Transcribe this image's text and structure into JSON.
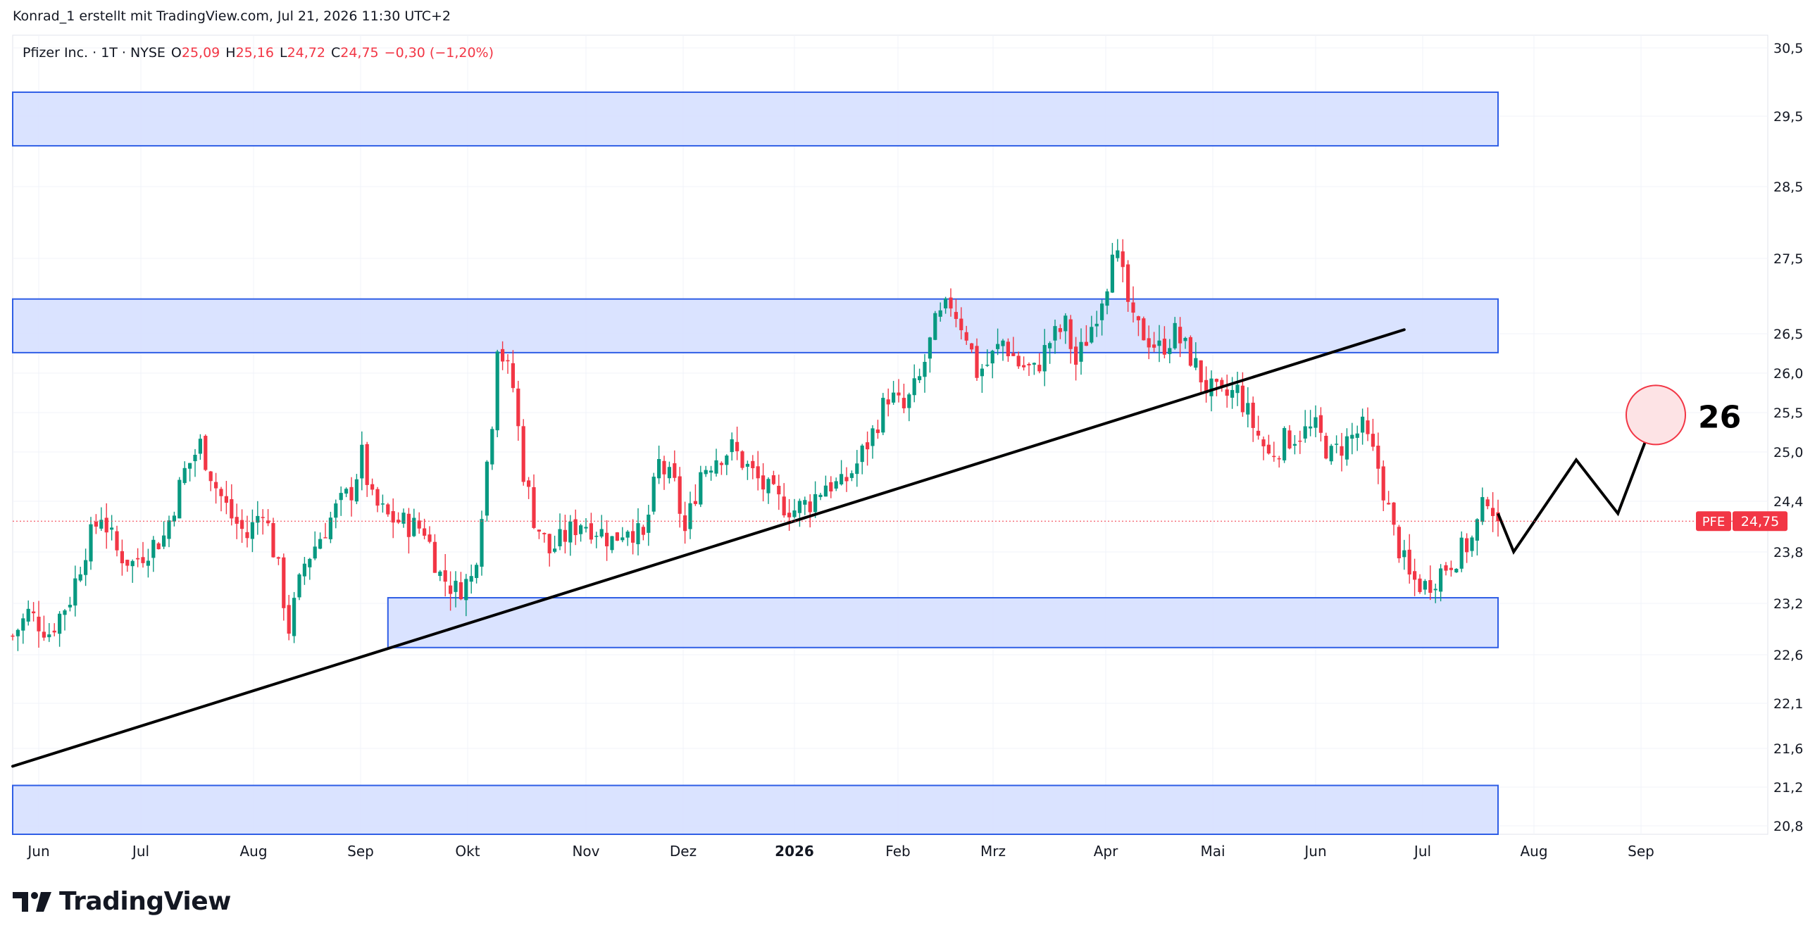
{
  "header": {
    "credit": "Konrad_1 erstellt mit TradingView.com, Jul 21, 2026 11:30 UTC+2"
  },
  "legend": {
    "symbol_text": "Pfizer Inc. · 1T · NYSE",
    "o_label": "O",
    "o_value": "25,09",
    "h_label": "H",
    "h_value": "25,16",
    "l_label": "L",
    "l_value": "24,72",
    "c_label": "C",
    "c_value": "24,75",
    "change": "−0,30 (−1,20%)"
  },
  "footer": {
    "brand": "TradingView"
  },
  "colors": {
    "up": "#089981",
    "down": "#f23645",
    "zone_fill": "#d6e0ff",
    "zone_stroke": "#2f5ee6",
    "grid": "#f0f3fa",
    "text": "#131722",
    "price_badge": "#f23645"
  },
  "chart_data": {
    "type": "candlestick",
    "symbol": "PFE",
    "last_price": 24.75,
    "last_price_label": "24,75",
    "y_ticks": [
      "30,50",
      "29,50",
      "28,50",
      "27,50",
      "26,50",
      "26,00",
      "25,50",
      "25,00",
      "24,40",
      "23,80",
      "23,20",
      "22,60",
      "22,10",
      "21,60",
      "21,20",
      "20,80"
    ],
    "x_ticks": [
      {
        "label": "Jun",
        "bold": false
      },
      {
        "label": "Jul",
        "bold": false
      },
      {
        "label": "Aug",
        "bold": false
      },
      {
        "label": "Sep",
        "bold": false
      },
      {
        "label": "Okt",
        "bold": false
      },
      {
        "label": "Nov",
        "bold": false
      },
      {
        "label": "Dez",
        "bold": false
      },
      {
        "label": "2026",
        "bold": true
      },
      {
        "label": "Feb",
        "bold": false
      },
      {
        "label": "Mrz",
        "bold": false
      },
      {
        "label": "Apr",
        "bold": false
      },
      {
        "label": "Mai",
        "bold": false
      },
      {
        "label": "Jun",
        "bold": false
      },
      {
        "label": "Jul",
        "bold": false
      },
      {
        "label": "Aug",
        "bold": false
      },
      {
        "label": "Sep",
        "bold": false
      }
    ],
    "close_path": [
      [
        0,
        23.25
      ],
      [
        3,
        23.55
      ],
      [
        7,
        23.3
      ],
      [
        11,
        23.75
      ],
      [
        14,
        24.4
      ],
      [
        17,
        24.85
      ],
      [
        20,
        24.35
      ],
      [
        23,
        24.2
      ],
      [
        26,
        24.4
      ],
      [
        29,
        24.55
      ],
      [
        33,
        25.4
      ],
      [
        36,
        25.75
      ],
      [
        39,
        25.2
      ],
      [
        42,
        24.8
      ],
      [
        45,
        24.55
      ],
      [
        48,
        24.95
      ],
      [
        51,
        24.1
      ],
      [
        53,
        23.35
      ],
      [
        56,
        24.2
      ],
      [
        59,
        24.55
      ],
      [
        62,
        24.9
      ],
      [
        65,
        25.15
      ],
      [
        67,
        25.6
      ],
      [
        69,
        25.0
      ],
      [
        72,
        24.8
      ],
      [
        76,
        24.7
      ],
      [
        79,
        24.65
      ],
      [
        82,
        24.05
      ],
      [
        85,
        23.85
      ],
      [
        88,
        24.0
      ],
      [
        89,
        24.35
      ],
      [
        92,
        26.1
      ],
      [
        93,
        27.1
      ],
      [
        96,
        26.5
      ],
      [
        98,
        25.4
      ],
      [
        100,
        24.8
      ],
      [
        103,
        24.35
      ],
      [
        106,
        24.55
      ],
      [
        109,
        24.75
      ],
      [
        112,
        24.65
      ],
      [
        115,
        24.5
      ],
      [
        118,
        24.7
      ],
      [
        121,
        24.5
      ],
      [
        124,
        25.5
      ],
      [
        127,
        25.2
      ],
      [
        129,
        24.6
      ],
      [
        132,
        25.4
      ],
      [
        135,
        25.6
      ],
      [
        138,
        25.7
      ],
      [
        141,
        25.45
      ],
      [
        144,
        25.2
      ],
      [
        147,
        25.0
      ],
      [
        150,
        24.9
      ],
      [
        153,
        25.0
      ],
      [
        156,
        25.25
      ],
      [
        159,
        25.2
      ],
      [
        162,
        25.5
      ],
      [
        165,
        25.9
      ],
      [
        168,
        26.4
      ],
      [
        171,
        26.2
      ],
      [
        174,
        26.6
      ],
      [
        177,
        27.3
      ],
      [
        180,
        27.6
      ],
      [
        183,
        27.2
      ],
      [
        185,
        26.7
      ],
      [
        187,
        26.8
      ],
      [
        190,
        27.1
      ],
      [
        193,
        26.8
      ],
      [
        196,
        26.7
      ],
      [
        199,
        27.1
      ],
      [
        202,
        27.3
      ],
      [
        204,
        26.8
      ],
      [
        207,
        27.3
      ],
      [
        210,
        27.9
      ],
      [
        211,
        28.4
      ],
      [
        213,
        27.9
      ],
      [
        215,
        27.3
      ],
      [
        217,
        27.2
      ],
      [
        220,
        27.0
      ],
      [
        223,
        27.2
      ],
      [
        226,
        26.9
      ],
      [
        229,
        26.5
      ],
      [
        232,
        26.35
      ],
      [
        235,
        26.45
      ],
      [
        238,
        26.0
      ],
      [
        241,
        25.6
      ],
      [
        244,
        25.8
      ],
      [
        247,
        25.9
      ],
      [
        250,
        25.95
      ],
      [
        253,
        25.6
      ],
      [
        256,
        25.8
      ],
      [
        259,
        25.95
      ],
      [
        262,
        25.45
      ],
      [
        265,
        24.6
      ],
      [
        268,
        24.0
      ],
      [
        271,
        23.9
      ],
      [
        274,
        24.1
      ],
      [
        277,
        24.3
      ],
      [
        280,
        24.5
      ],
      [
        283,
        25.1
      ],
      [
        285,
        24.75
      ]
    ],
    "zones": [
      {
        "day_start": 0,
        "day_end": 285,
        "price_top": 30.35,
        "price_bottom": 29.65
      },
      {
        "day_start": 0,
        "day_end": 285,
        "price_top": 27.65,
        "price_bottom": 26.95
      },
      {
        "day_start": 72,
        "day_end": 285,
        "price_top": 23.75,
        "price_bottom": 23.1
      },
      {
        "day_start": 0,
        "day_end": 285,
        "price_top": 21.3,
        "price_bottom": 20.5
      }
    ],
    "trendline": {
      "day_start": 0,
      "price_start": 21.55,
      "day_end": 267,
      "price_end": 27.25
    },
    "projection": [
      [
        285,
        24.85
      ],
      [
        288,
        24.35
      ],
      [
        300,
        25.55
      ],
      [
        308,
        24.85
      ],
      [
        315,
        26.1
      ]
    ],
    "target_circle": {
      "day": 315,
      "price": 26.1
    },
    "target_label": "26"
  }
}
